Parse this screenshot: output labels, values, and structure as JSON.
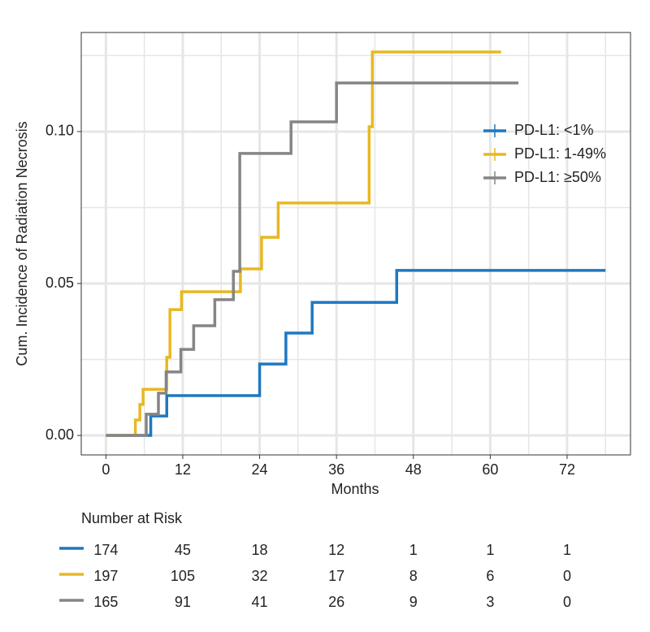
{
  "chart_data": {
    "type": "step",
    "y_label": "Cum. Incidence of Radiation Necrosis",
    "x_label": "Months",
    "xlim": [
      -3.85,
      81.9
    ],
    "xticks": [
      0,
      12,
      24,
      36,
      48,
      60,
      72
    ],
    "ylim": [
      -0.0064,
      0.1326
    ],
    "yticks": [
      {
        "value": 0,
        "label": "0.00"
      },
      {
        "value": 0.05,
        "label": "0.05"
      },
      {
        "value": 0.1,
        "label": "0.10"
      }
    ],
    "grid": true,
    "minor_grid": true,
    "legend": "upper-right",
    "series": [
      {
        "name": "PD-L1: <1%",
        "color": "#1f78c1",
        "x": [
          0,
          7.0,
          9.5,
          24.0,
          28.1,
          32.2,
          45.4,
          78.0
        ],
        "values": [
          0,
          0.0064,
          0.0131,
          0.0235,
          0.0337,
          0.0438,
          0.0543,
          0.0543
        ]
      },
      {
        "name": "PD-L1: 1-49%",
        "color": "#e8b820",
        "x": [
          0,
          4.6,
          5.3,
          5.8,
          9.5,
          10.0,
          11.8,
          21.0,
          24.3,
          26.9,
          41.1,
          41.6,
          61.7
        ],
        "values": [
          0,
          0.0051,
          0.0102,
          0.0152,
          0.0257,
          0.0414,
          0.0473,
          0.0548,
          0.0652,
          0.0765,
          0.1016,
          0.1262,
          0.1262
        ]
      },
      {
        "name": "PD-L1: ≥50%",
        "color": "#858585",
        "x": [
          0,
          6.3,
          8.2,
          9.4,
          11.7,
          13.7,
          17.0,
          19.9,
          20.9,
          28.9,
          36.0,
          64.4
        ],
        "values": [
          0,
          0.007,
          0.0139,
          0.0209,
          0.0283,
          0.0361,
          0.0447,
          0.054,
          0.0928,
          0.1032,
          0.116,
          0.116
        ]
      }
    ],
    "risk_table": {
      "title": "Number at Risk",
      "rows": [
        [
          174,
          45,
          18,
          12,
          1,
          1,
          1
        ],
        [
          197,
          105,
          32,
          17,
          8,
          6,
          0
        ],
        [
          165,
          91,
          41,
          26,
          9,
          3,
          0
        ]
      ]
    }
  }
}
